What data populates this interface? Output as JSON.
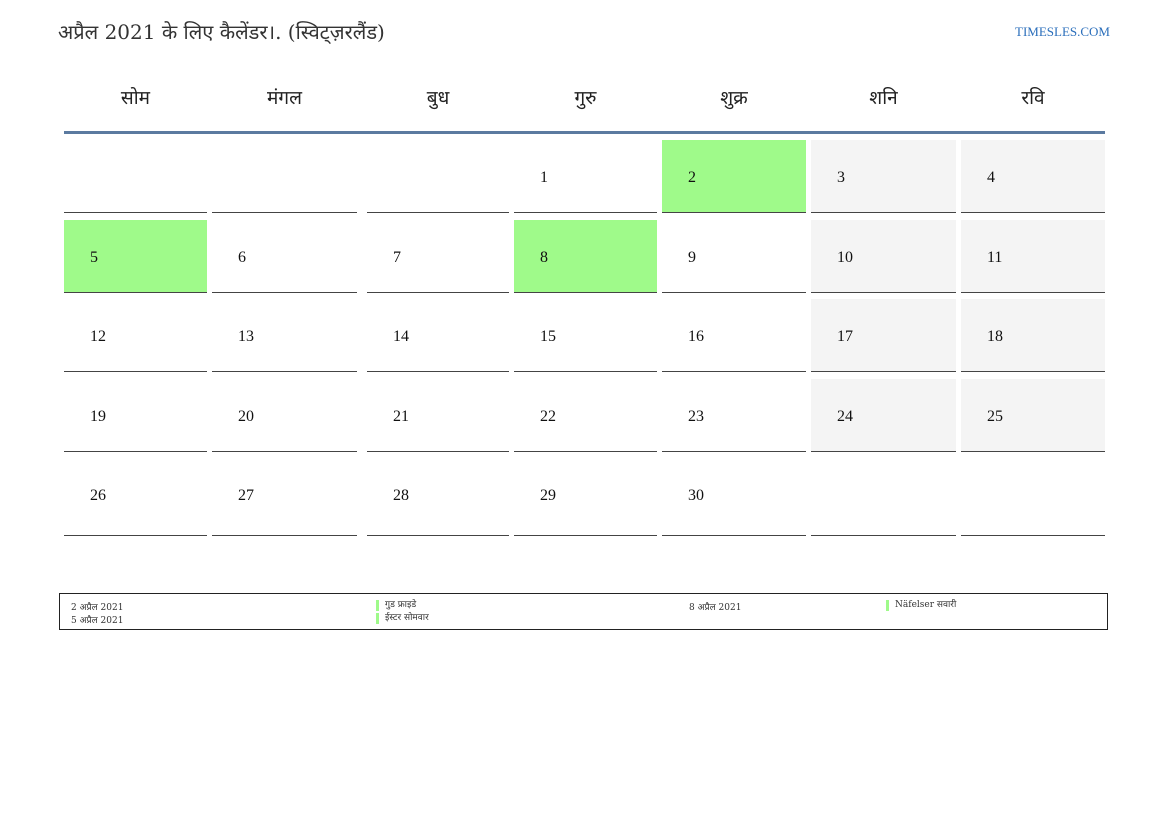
{
  "title": "अप्रैल 2021 के लिए कैलेंडर।. (स्विट्ज़रलैंड)",
  "site": "TIMESLES.COM",
  "colors": {
    "holiday": "#9ffa8a",
    "weekend": "#f4f4f4",
    "header_line": "#5b7aa0",
    "link": "#2a6ebb"
  },
  "weekdays": [
    "सोम",
    "मंगल",
    "बुध",
    "गुरु",
    "शुक्र",
    "शनि",
    "रवि"
  ],
  "weeks": [
    [
      {
        "day": "",
        "type": ""
      },
      {
        "day": "",
        "type": ""
      },
      {
        "day": "",
        "type": ""
      },
      {
        "day": "1",
        "type": ""
      },
      {
        "day": "2",
        "type": "holiday"
      },
      {
        "day": "3",
        "type": "weekend"
      },
      {
        "day": "4",
        "type": "weekend"
      }
    ],
    [
      {
        "day": "5",
        "type": "holiday"
      },
      {
        "day": "6",
        "type": ""
      },
      {
        "day": "7",
        "type": ""
      },
      {
        "day": "8",
        "type": "holiday"
      },
      {
        "day": "9",
        "type": ""
      },
      {
        "day": "10",
        "type": "weekend"
      },
      {
        "day": "11",
        "type": "weekend"
      }
    ],
    [
      {
        "day": "12",
        "type": ""
      },
      {
        "day": "13",
        "type": ""
      },
      {
        "day": "14",
        "type": ""
      },
      {
        "day": "15",
        "type": ""
      },
      {
        "day": "16",
        "type": ""
      },
      {
        "day": "17",
        "type": "weekend"
      },
      {
        "day": "18",
        "type": "weekend"
      }
    ],
    [
      {
        "day": "19",
        "type": ""
      },
      {
        "day": "20",
        "type": ""
      },
      {
        "day": "21",
        "type": ""
      },
      {
        "day": "22",
        "type": ""
      },
      {
        "day": "23",
        "type": ""
      },
      {
        "day": "24",
        "type": "weekend"
      },
      {
        "day": "25",
        "type": "weekend"
      }
    ],
    [
      {
        "day": "26",
        "type": ""
      },
      {
        "day": "27",
        "type": ""
      },
      {
        "day": "28",
        "type": ""
      },
      {
        "day": "29",
        "type": ""
      },
      {
        "day": "30",
        "type": ""
      },
      {
        "day": "",
        "type": ""
      },
      {
        "day": "",
        "type": ""
      }
    ]
  ],
  "holidays": [
    {
      "date": "2 अप्रैल 2021",
      "name": "गुड फ्राइडे"
    },
    {
      "date": "5 अप्रैल 2021",
      "name": "ईस्टर सोमवार"
    },
    {
      "date": "8 अप्रैल 2021",
      "name": "Näfelser सवारी"
    }
  ]
}
